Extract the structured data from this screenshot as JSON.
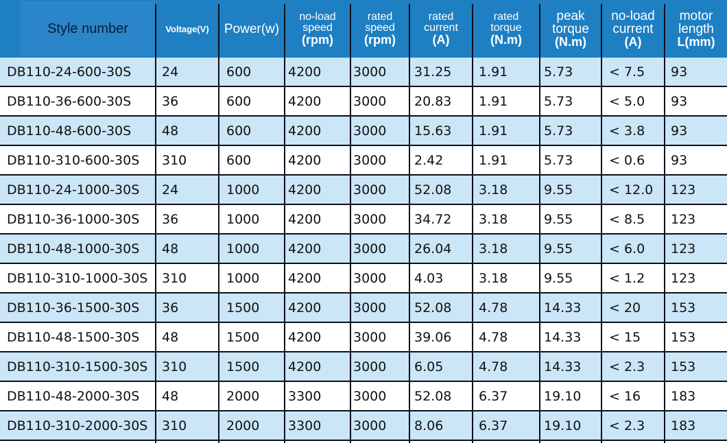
{
  "header": {
    "style_number": "Style number",
    "voltage": "Voltage(V)",
    "power": "Power(w)",
    "noload_speed": [
      "no-load",
      "speed",
      "(rpm)"
    ],
    "rated_speed": [
      "rated",
      "speed",
      "(rpm)"
    ],
    "rated_current": [
      "rated",
      "current",
      "(A)"
    ],
    "rated_torque": [
      "rated",
      "torque",
      "(N.m)"
    ],
    "peak_torque": [
      "peak",
      "torque",
      "(N.m)"
    ],
    "noload_current": [
      "no-load",
      "current",
      "(A)"
    ],
    "motor_length": [
      "motor",
      "length",
      "L(mm)"
    ]
  },
  "rows": [
    [
      "DB110-24-600-30S",
      "24",
      "600",
      "4200",
      "3000",
      "31.25",
      "1.91",
      "5.73",
      "< 7.5",
      "93"
    ],
    [
      "DB110-36-600-30S",
      "36",
      "600",
      "4200",
      "3000",
      "20.83",
      "1.91",
      "5.73",
      "< 5.0",
      "93"
    ],
    [
      "DB110-48-600-30S",
      "48",
      "600",
      "4200",
      "3000",
      "15.63",
      "1.91",
      "5.73",
      "< 3.8",
      "93"
    ],
    [
      "DB110-310-600-30S",
      "310",
      "600",
      "4200",
      "3000",
      "2.42",
      "1.91",
      "5.73",
      "< 0.6",
      "93"
    ],
    [
      "DB110-24-1000-30S",
      "24",
      "1000",
      "4200",
      "3000",
      "52.08",
      "3.18",
      "9.55",
      "< 12.0",
      "123"
    ],
    [
      "DB110-36-1000-30S",
      "36",
      "1000",
      "4200",
      "3000",
      "34.72",
      "3.18",
      "9.55",
      "< 8.5",
      "123"
    ],
    [
      "DB110-48-1000-30S",
      "48",
      "1000",
      "4200",
      "3000",
      "26.04",
      "3.18",
      "9.55",
      "< 6.0",
      "123"
    ],
    [
      "DB110-310-1000-30S",
      "310",
      "1000",
      "4200",
      "3000",
      "4.03",
      "3.18",
      "9.55",
      "< 1.2",
      "123"
    ],
    [
      "DB110-36-1500-30S",
      "36",
      "1500",
      "4200",
      "3000",
      "52.08",
      "4.78",
      "14.33",
      "< 20",
      "153"
    ],
    [
      "DB110-48-1500-30S",
      "48",
      "1500",
      "4200",
      "3000",
      "39.06",
      "4.78",
      "14.33",
      "< 15",
      "153"
    ],
    [
      "DB110-310-1500-30S",
      "310",
      "1500",
      "4200",
      "3000",
      "6.05",
      "4.78",
      "14.33",
      "< 2.3",
      "153"
    ],
    [
      "DB110-48-2000-30S",
      "48",
      "2000",
      "3300",
      "3000",
      "52.08",
      "6.37",
      "19.10",
      "< 16",
      "183"
    ],
    [
      "DB110-310-2000-30S",
      "310",
      "2000",
      "3300",
      "3000",
      "8.06",
      "6.37",
      "19.10",
      "< 2.3",
      "183"
    ]
  ],
  "colors": {
    "header_bg": "#1f7fc3",
    "row_blue": "#cbe6f6",
    "row_white": "#ffffff",
    "grid": "#0b0f1a"
  }
}
